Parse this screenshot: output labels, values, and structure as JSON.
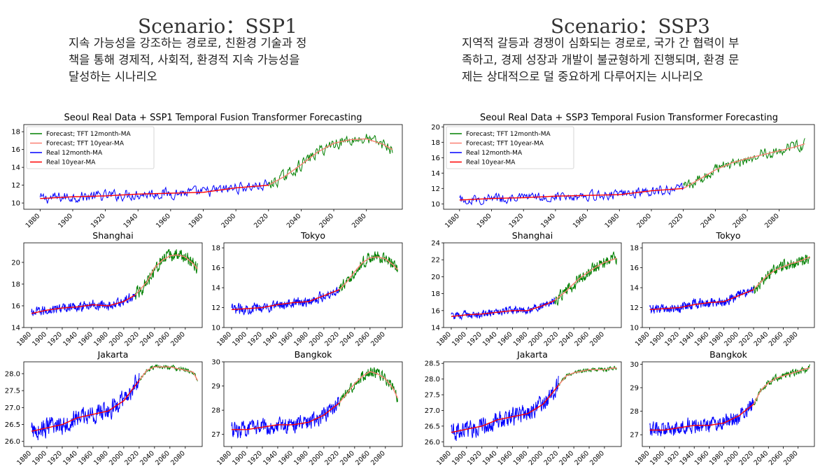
{
  "scenarios": [
    {
      "title": "Scenario：SSP1",
      "description_lines": [
        "지속 가능성을 강조하는 경로로, 친환경 기술과 정",
        "책을 통해 경제적, 사회적, 환경적 지속 가능성을",
        "달성하는 시나리오"
      ]
    },
    {
      "title": "Scenario：SSP3",
      "description_lines": [
        "지역적 갈등과 경쟁이 심화되는 경로로, 국가 간 협력이 부",
        "족하고, 경제 성장과 개발이 불균형하게 진행되며, 환경 문",
        "제는 상대적으로 덜 중요하게 다루어지는 시나리오"
      ]
    }
  ],
  "colors": {
    "forecast_12m": "#008000",
    "forecast_10y": "#fa8072",
    "real_12m": "#0000ff",
    "real_10y": "#ff0000"
  },
  "legend": [
    "Forecast; TFT 12month-MA",
    "Forecast; TFT 10year-MA",
    "Real 12month-MA",
    "Real 10year-MA"
  ],
  "chart_data": [
    {
      "id": "ssp1-seoul",
      "type": "line",
      "title": "Seoul Real Data + SSP1 Temporal Fusion Transformer Forecasting",
      "legend_position": "upper-left",
      "xticks": [
        1880,
        1900,
        1920,
        1940,
        1960,
        1980,
        2000,
        2020,
        2040,
        2060,
        2080
      ],
      "yticks": [
        10,
        12,
        14,
        16,
        18
      ],
      "ylim": [
        9.3,
        18.8
      ],
      "xlim": [
        1870,
        2102
      ],
      "real_10y": {
        "x": [
          1880,
          1900,
          1920,
          1940,
          1960,
          1980,
          2000,
          2020
        ],
        "y": [
          10.5,
          10.7,
          10.8,
          11.0,
          11.1,
          11.2,
          11.7,
          12.0
        ]
      },
      "forecast_10y": {
        "x": [
          2020,
          2030,
          2040,
          2050,
          2060,
          2070,
          2080,
          2090,
          2096
        ],
        "y": [
          12.0,
          13.0,
          14.3,
          15.7,
          16.7,
          17.1,
          17.2,
          16.6,
          16.0
        ]
      },
      "real_noise": 0.55,
      "forecast_noise": 0.6
    },
    {
      "id": "ssp1-shanghai",
      "type": "line",
      "title": "Shanghai",
      "xticks": [
        1880,
        1900,
        1920,
        1940,
        1960,
        1980,
        2000,
        2020,
        2040,
        2060,
        2080
      ],
      "yticks": [
        14,
        16,
        18,
        20
      ],
      "ylim": [
        14.0,
        21.8
      ],
      "xlim": [
        1870,
        2102
      ],
      "real_10y": {
        "x": [
          1880,
          1900,
          1920,
          1940,
          1960,
          1980,
          2000,
          2015
        ],
        "y": [
          15.3,
          15.6,
          15.8,
          15.9,
          16.1,
          16.0,
          16.4,
          17.0
        ]
      },
      "forecast_10y": {
        "x": [
          2015,
          2030,
          2040,
          2050,
          2060,
          2070,
          2080,
          2090,
          2096
        ],
        "y": [
          17.0,
          18.2,
          19.5,
          20.2,
          20.6,
          20.7,
          20.5,
          19.9,
          19.4
        ]
      },
      "real_noise": 0.4,
      "forecast_noise": 0.55
    },
    {
      "id": "ssp1-tokyo",
      "type": "line",
      "title": "Tokyo",
      "xticks": [
        1880,
        1900,
        1920,
        1940,
        1960,
        1980,
        2000,
        2020,
        2040,
        2060,
        2080
      ],
      "yticks": [
        10,
        12,
        14,
        16,
        18
      ],
      "ylim": [
        10.0,
        18.5
      ],
      "xlim": [
        1870,
        2102
      ],
      "real_10y": {
        "x": [
          1880,
          1900,
          1920,
          1940,
          1960,
          1980,
          2000,
          2020
        ],
        "y": [
          11.8,
          11.9,
          12.0,
          12.3,
          12.5,
          12.6,
          13.2,
          13.8
        ]
      },
      "forecast_10y": {
        "x": [
          2020,
          2030,
          2040,
          2050,
          2060,
          2070,
          2080,
          2090,
          2096
        ],
        "y": [
          13.8,
          14.6,
          15.6,
          16.5,
          17.0,
          17.1,
          16.9,
          16.3,
          15.8
        ]
      },
      "real_noise": 0.45,
      "forecast_noise": 0.5
    },
    {
      "id": "ssp1-jakarta",
      "type": "line",
      "title": "Jakarta",
      "xticks": [
        1880,
        1900,
        1920,
        1940,
        1960,
        1980,
        2000,
        2020,
        2040,
        2060,
        2080
      ],
      "yticks": [
        26.0,
        26.5,
        27.0,
        27.5,
        28.0
      ],
      "ylim": [
        25.85,
        28.35
      ],
      "xlim": [
        1870,
        2102
      ],
      "real_10y": {
        "x": [
          1880,
          1900,
          1920,
          1940,
          1960,
          1980,
          2000,
          2020
        ],
        "y": [
          26.3,
          26.4,
          26.5,
          26.7,
          26.8,
          26.9,
          27.2,
          27.8
        ]
      },
      "forecast_10y": {
        "x": [
          2020,
          2030,
          2040,
          2050,
          2060,
          2070,
          2080,
          2090,
          2096
        ],
        "y": [
          27.8,
          28.1,
          28.2,
          28.2,
          28.2,
          28.15,
          28.1,
          28.05,
          27.8
        ]
      },
      "real_noise": 0.25,
      "forecast_noise": 0.06
    },
    {
      "id": "ssp1-bangkok",
      "type": "line",
      "title": "Bangkok",
      "xticks": [
        1880,
        1900,
        1920,
        1940,
        1960,
        1980,
        2000,
        2020,
        2040,
        2060,
        2080
      ],
      "yticks": [
        27,
        28,
        29,
        30
      ],
      "ylim": [
        26.5,
        30.0
      ],
      "xlim": [
        1870,
        2102
      ],
      "real_10y": {
        "x": [
          1880,
          1900,
          1920,
          1940,
          1960,
          1980,
          2000,
          2020
        ],
        "y": [
          27.2,
          27.2,
          27.3,
          27.4,
          27.4,
          27.5,
          27.8,
          28.3
        ]
      },
      "forecast_10y": {
        "x": [
          2020,
          2030,
          2040,
          2050,
          2060,
          2070,
          2080,
          2090,
          2096
        ],
        "y": [
          28.3,
          28.7,
          29.1,
          29.4,
          29.6,
          29.5,
          29.3,
          28.9,
          28.5
        ]
      },
      "real_noise": 0.3,
      "forecast_noise": 0.2
    },
    {
      "id": "ssp3-seoul",
      "type": "line",
      "title": "Seoul Real Data + SSP3 Temporal Fusion Transformer Forecasting",
      "legend_position": "upper-left",
      "xticks": [
        1880,
        1900,
        1920,
        1940,
        1960,
        1980,
        2000,
        2020,
        2040,
        2060,
        2080
      ],
      "yticks": [
        10,
        12,
        14,
        16,
        18,
        20
      ],
      "ylim": [
        9.3,
        20.3
      ],
      "xlim": [
        1870,
        2102
      ],
      "real_10y": {
        "x": [
          1880,
          1900,
          1920,
          1940,
          1960,
          1980,
          2000,
          2020
        ],
        "y": [
          10.5,
          10.7,
          10.8,
          11.0,
          11.1,
          11.2,
          11.7,
          12.0
        ]
      },
      "forecast_10y": {
        "x": [
          2020,
          2030,
          2040,
          2050,
          2060,
          2070,
          2080,
          2090,
          2096
        ],
        "y": [
          12.0,
          13.2,
          14.4,
          15.3,
          15.9,
          16.4,
          16.9,
          17.4,
          17.8
        ]
      },
      "real_noise": 0.55,
      "forecast_noise": 0.7
    },
    {
      "id": "ssp3-shanghai",
      "type": "line",
      "title": "Shanghai",
      "xticks": [
        1880,
        1900,
        1920,
        1940,
        1960,
        1980,
        2000,
        2020,
        2040,
        2060,
        2080
      ],
      "yticks": [
        14,
        16,
        18,
        20,
        22,
        24
      ],
      "ylim": [
        14.0,
        24.0
      ],
      "xlim": [
        1870,
        2102
      ],
      "real_10y": {
        "x": [
          1880,
          1900,
          1920,
          1940,
          1960,
          1980,
          2000,
          2015
        ],
        "y": [
          15.3,
          15.5,
          15.6,
          15.8,
          16.0,
          16.0,
          16.6,
          17.2
        ]
      },
      "forecast_10y": {
        "x": [
          2015,
          2030,
          2040,
          2050,
          2060,
          2070,
          2080,
          2090,
          2096
        ],
        "y": [
          17.2,
          18.3,
          19.2,
          20.0,
          20.6,
          21.2,
          21.7,
          22.0,
          22.2
        ]
      },
      "real_noise": 0.4,
      "forecast_noise": 0.65
    },
    {
      "id": "ssp3-tokyo",
      "type": "line",
      "title": "Tokyo",
      "xticks": [
        1880,
        1900,
        1920,
        1940,
        1960,
        1980,
        2000,
        2020,
        2040,
        2060,
        2080
      ],
      "yticks": [
        10,
        12,
        14,
        16,
        18
      ],
      "ylim": [
        10.0,
        18.5
      ],
      "xlim": [
        1870,
        2102
      ],
      "real_10y": {
        "x": [
          1880,
          1900,
          1920,
          1940,
          1960,
          1980,
          2000,
          2020
        ],
        "y": [
          11.8,
          11.9,
          12.0,
          12.3,
          12.5,
          12.6,
          13.2,
          13.8
        ]
      },
      "forecast_10y": {
        "x": [
          2020,
          2030,
          2040,
          2050,
          2060,
          2070,
          2080,
          2090,
          2096
        ],
        "y": [
          13.8,
          14.6,
          15.3,
          15.8,
          16.1,
          16.4,
          16.6,
          16.9,
          17.1
        ]
      },
      "real_noise": 0.45,
      "forecast_noise": 0.55
    },
    {
      "id": "ssp3-jakarta",
      "type": "line",
      "title": "Jakarta",
      "xticks": [
        1880,
        1900,
        1920,
        1940,
        1960,
        1980,
        2000,
        2020,
        2040,
        2060,
        2080
      ],
      "yticks": [
        26.0,
        26.5,
        27.0,
        27.5,
        28.0,
        28.5
      ],
      "ylim": [
        25.85,
        28.55
      ],
      "xlim": [
        1870,
        2102
      ],
      "real_10y": {
        "x": [
          1880,
          1900,
          1920,
          1940,
          1960,
          1980,
          2000,
          2020
        ],
        "y": [
          26.3,
          26.4,
          26.5,
          26.7,
          26.8,
          26.9,
          27.2,
          27.8
        ]
      },
      "forecast_10y": {
        "x": [
          2020,
          2030,
          2040,
          2050,
          2060,
          2070,
          2080,
          2090,
          2096
        ],
        "y": [
          27.8,
          28.1,
          28.2,
          28.25,
          28.3,
          28.3,
          28.3,
          28.35,
          28.35
        ]
      },
      "real_noise": 0.25,
      "forecast_noise": 0.05
    },
    {
      "id": "ssp3-bangkok",
      "type": "line",
      "title": "Bangkok",
      "xticks": [
        1880,
        1900,
        1920,
        1940,
        1960,
        1980,
        2000,
        2020,
        2040,
        2060,
        2080
      ],
      "yticks": [
        27,
        28,
        29,
        30
      ],
      "ylim": [
        26.5,
        30.1
      ],
      "xlim": [
        1870,
        2102
      ],
      "real_10y": {
        "x": [
          1880,
          1900,
          1920,
          1940,
          1960,
          1980,
          2000,
          2020
        ],
        "y": [
          27.2,
          27.2,
          27.3,
          27.4,
          27.4,
          27.5,
          27.8,
          28.3
        ]
      },
      "forecast_10y": {
        "x": [
          2020,
          2030,
          2040,
          2050,
          2060,
          2070,
          2080,
          2090,
          2096
        ],
        "y": [
          28.3,
          28.9,
          29.2,
          29.4,
          29.5,
          29.6,
          29.7,
          29.8,
          29.85
        ]
      },
      "real_noise": 0.3,
      "forecast_noise": 0.12
    }
  ]
}
